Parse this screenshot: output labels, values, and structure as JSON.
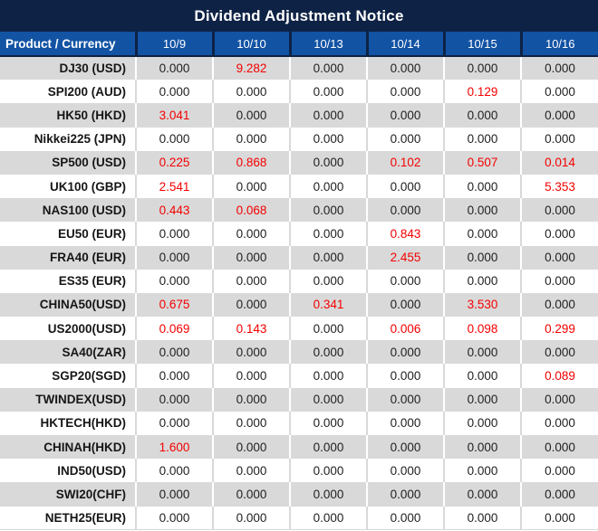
{
  "title_bar": {
    "title": "Dividend Adjustment Notice"
  },
  "colors": {
    "title_bar_bg": "#0e2245",
    "header_bg": "#1253a4",
    "header_text": "#ffffff",
    "row_alt_bg": "#d9d9d9",
    "value_text": "#1f1f1f",
    "highlight_red": "#f40000"
  },
  "table": {
    "columns": [
      "Product / Currency",
      "10/9",
      "10/10",
      "10/13",
      "10/14",
      "10/15",
      "10/16"
    ],
    "rows": [
      {
        "product": "DJ30 (USD)",
        "values": [
          "0.000",
          "9.282",
          "0.000",
          "0.000",
          "0.000",
          "0.000"
        ],
        "red": [
          1
        ]
      },
      {
        "product": "SPI200 (AUD)",
        "values": [
          "0.000",
          "0.000",
          "0.000",
          "0.000",
          "0.129",
          "0.000"
        ],
        "red": [
          4
        ]
      },
      {
        "product": "HK50 (HKD)",
        "values": [
          "3.041",
          "0.000",
          "0.000",
          "0.000",
          "0.000",
          "0.000"
        ],
        "red": [
          0
        ]
      },
      {
        "product": "Nikkei225 (JPN)",
        "values": [
          "0.000",
          "0.000",
          "0.000",
          "0.000",
          "0.000",
          "0.000"
        ],
        "red": []
      },
      {
        "product": "SP500 (USD)",
        "values": [
          "0.225",
          "0.868",
          "0.000",
          "0.102",
          "0.507",
          "0.014"
        ],
        "red": [
          0,
          1,
          3,
          4,
          5
        ]
      },
      {
        "product": "UK100 (GBP)",
        "values": [
          "2.541",
          "0.000",
          "0.000",
          "0.000",
          "0.000",
          "5.353"
        ],
        "red": [
          0,
          5
        ]
      },
      {
        "product": "NAS100 (USD)",
        "values": [
          "0.443",
          "0.068",
          "0.000",
          "0.000",
          "0.000",
          "0.000"
        ],
        "red": [
          0,
          1
        ]
      },
      {
        "product": "EU50 (EUR)",
        "values": [
          "0.000",
          "0.000",
          "0.000",
          "0.843",
          "0.000",
          "0.000"
        ],
        "red": [
          3
        ]
      },
      {
        "product": "FRA40 (EUR)",
        "values": [
          "0.000",
          "0.000",
          "0.000",
          "2.455",
          "0.000",
          "0.000"
        ],
        "red": [
          3
        ]
      },
      {
        "product": "ES35 (EUR)",
        "values": [
          "0.000",
          "0.000",
          "0.000",
          "0.000",
          "0.000",
          "0.000"
        ],
        "red": []
      },
      {
        "product": "CHINA50(USD)",
        "values": [
          "0.675",
          "0.000",
          "0.341",
          "0.000",
          "3.530",
          "0.000"
        ],
        "red": [
          0,
          2,
          4
        ]
      },
      {
        "product": "US2000(USD)",
        "values": [
          "0.069",
          "0.143",
          "0.000",
          "0.006",
          "0.098",
          "0.299"
        ],
        "red": [
          0,
          1,
          3,
          4,
          5
        ]
      },
      {
        "product": "SA40(ZAR)",
        "values": [
          "0.000",
          "0.000",
          "0.000",
          "0.000",
          "0.000",
          "0.000"
        ],
        "red": []
      },
      {
        "product": "SGP20(SGD)",
        "values": [
          "0.000",
          "0.000",
          "0.000",
          "0.000",
          "0.000",
          "0.089"
        ],
        "red": [
          5
        ]
      },
      {
        "product": "TWINDEX(USD)",
        "values": [
          "0.000",
          "0.000",
          "0.000",
          "0.000",
          "0.000",
          "0.000"
        ],
        "red": []
      },
      {
        "product": "HKTECH(HKD)",
        "values": [
          "0.000",
          "0.000",
          "0.000",
          "0.000",
          "0.000",
          "0.000"
        ],
        "red": []
      },
      {
        "product": "CHINAH(HKD)",
        "values": [
          "1.600",
          "0.000",
          "0.000",
          "0.000",
          "0.000",
          "0.000"
        ],
        "red": [
          0
        ]
      },
      {
        "product": "IND50(USD)",
        "values": [
          "0.000",
          "0.000",
          "0.000",
          "0.000",
          "0.000",
          "0.000"
        ],
        "red": []
      },
      {
        "product": "SWI20(CHF)",
        "values": [
          "0.000",
          "0.000",
          "0.000",
          "0.000",
          "0.000",
          "0.000"
        ],
        "red": []
      },
      {
        "product": "NETH25(EUR)",
        "values": [
          "0.000",
          "0.000",
          "0.000",
          "0.000",
          "0.000",
          "0.000"
        ],
        "red": []
      }
    ]
  }
}
